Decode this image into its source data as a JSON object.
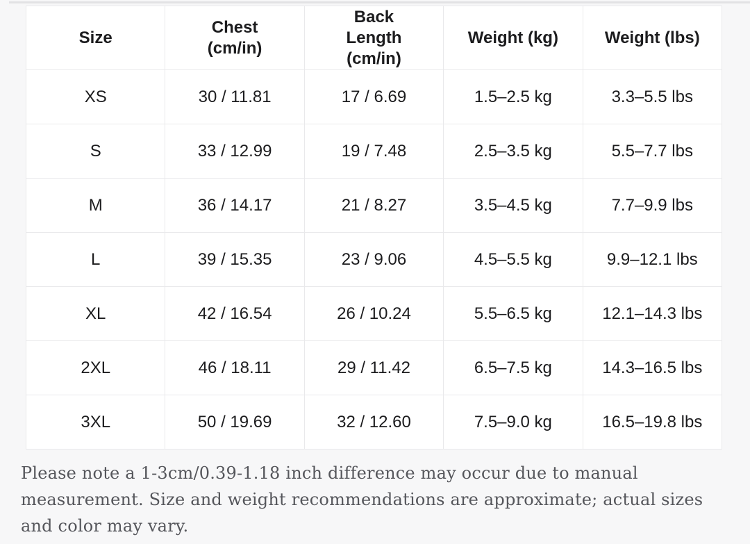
{
  "table": {
    "headers": [
      "Size",
      "Chest (cm/in)",
      "Back Length (cm/in)",
      "Weight (kg)",
      "Weight (lbs)"
    ],
    "rows": [
      [
        "XS",
        "30 / 11.81",
        "17 / 6.69",
        "1.5–2.5 kg",
        "3.3–5.5 lbs"
      ],
      [
        "S",
        "33 / 12.99",
        "19 / 7.48",
        "2.5–3.5 kg",
        "5.5–7.7 lbs"
      ],
      [
        "M",
        "36 / 14.17",
        "21 / 8.27",
        "3.5–4.5 kg",
        "7.7–9.9 lbs"
      ],
      [
        "L",
        "39 / 15.35",
        "23 / 9.06",
        "4.5–5.5 kg",
        "9.9–12.1 lbs"
      ],
      [
        "XL",
        "42 / 16.54",
        "26 / 10.24",
        "5.5–6.5 kg",
        "12.1–14.3 lbs"
      ],
      [
        "2XL",
        "46 / 18.11",
        "29 / 11.42",
        "6.5–7.5 kg",
        "14.3–16.5 lbs"
      ],
      [
        "3XL",
        "50 / 19.69",
        "32 / 12.60",
        "7.5–9.0 kg",
        "16.5–19.8 lbs"
      ]
    ]
  },
  "note_text": "Please note a 1-3cm/0.39-1.18 inch difference may occur due to manual measurement. Size and weight recommendations are approximate; actual sizes and color may vary.",
  "colors": {
    "page_background": "#f7f7f8",
    "cell_background": "#ffffff",
    "border": "#e9e9eb",
    "table_text": "#1c1c1e",
    "note_text": "#55565b",
    "top_divider": "#e2e2e4"
  }
}
